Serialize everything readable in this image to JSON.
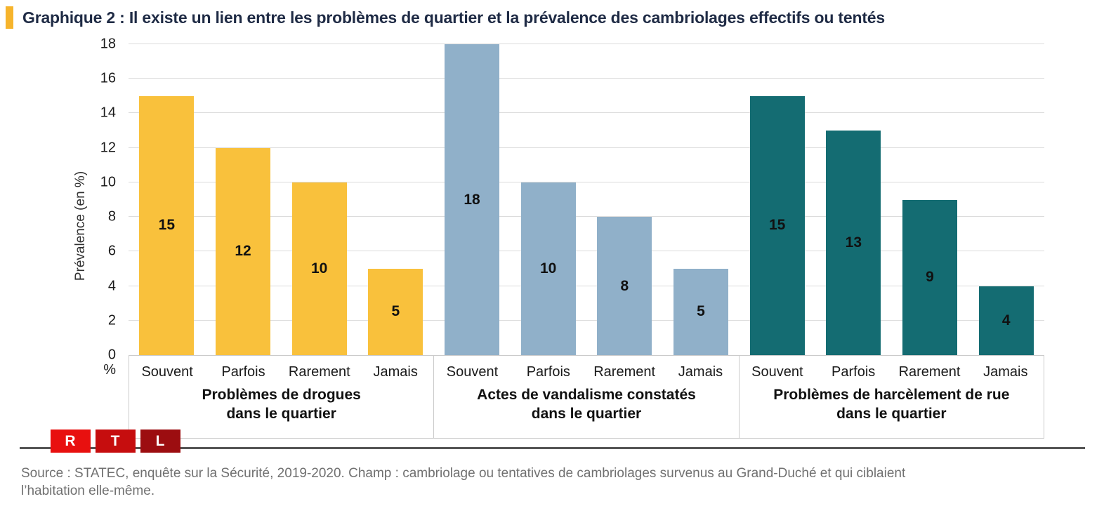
{
  "header": {
    "title": "Graphique 2 : Il existe un lien entre les problèmes de quartier et la prévalence des cambriolages effectifs ou tentés",
    "marker_color": "#F6B42C"
  },
  "chart_data": {
    "type": "bar",
    "title": "Graphique 2 : Il existe un lien entre les problèmes de quartier et la prévalence des cambriolages effectifs ou tentés",
    "ylabel": "Prévalence (en %)",
    "y_unit": "%",
    "ylim": [
      0,
      18
    ],
    "y_tick_step": 2,
    "grid": "horizontal",
    "legend_position": "none",
    "categories": [
      "Souvent",
      "Parfois",
      "Rarement",
      "Jamais"
    ],
    "groups": [
      {
        "name": "Problèmes de drogues dans le quartier",
        "name_line1": "Problèmes de drogues",
        "name_line2": "dans le quartier",
        "color": "#F9C13C",
        "values": [
          15,
          12,
          10,
          5
        ]
      },
      {
        "name": "Actes de vandalisme constatés dans le quartier",
        "name_line1": "Actes de vandalisme constatés",
        "name_line2": "dans le quartier",
        "color": "#90B0C9",
        "values": [
          18,
          10,
          8,
          5
        ]
      },
      {
        "name": "Problèmes de harcèlement de rue dans le quartier",
        "name_line1": "Problèmes de harcèlement de rue",
        "name_line2": "dans le quartier",
        "color": "#146C72",
        "values": [
          15,
          13,
          9,
          4
        ]
      }
    ]
  },
  "footer": {
    "divider_color": "#555555",
    "logo": {
      "letters": [
        "R",
        "T",
        "L"
      ],
      "colors": [
        "#E8100F",
        "#C60D0E",
        "#9C0D10"
      ]
    },
    "source_lines": [
      "Source : STATEC, enquête sur la Sécurité, 2019-2020. Champ : cambriolage ou tentatives de cambriolages survenus au Grand-Duché et qui ciblaient",
      "l’habitation elle-même."
    ]
  }
}
